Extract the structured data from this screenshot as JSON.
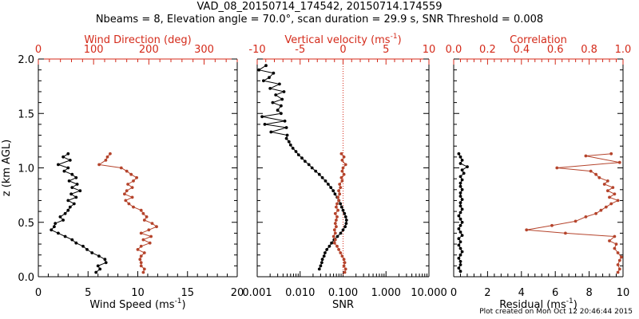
{
  "title": "VAD_08_20150714_174542, 20150714.174559",
  "subtitle": "Nbeams = 8, Elevation angle = 70.0°, scan duration = 29.9 s, SNR Threshold = 0.008",
  "footer": "Plot created on Mon Oct 12 20:46:44 2015",
  "colors": {
    "black_series": "#000000",
    "red_series": "#b5442c",
    "top_axis": "#d42a1a",
    "zero_line": "#d42a1a"
  },
  "chart_data": [
    {
      "type": "scatter",
      "panel": "left",
      "ylabel": "z (km AGL)",
      "ylim": [
        0,
        2.0
      ],
      "yticks": [
        "0.0",
        "0.5",
        "1.0",
        "1.5",
        "2.0"
      ],
      "bottom_axis": {
        "label": "Wind Speed (ms",
        "label_sup": "-1",
        "label_tail": ")",
        "range": [
          0,
          20
        ],
        "ticks": [
          "0",
          "5",
          "10",
          "15",
          "20"
        ]
      },
      "top_axis": {
        "label": "Wind Direction (deg)",
        "range": [
          0,
          360
        ],
        "ticks": [
          "0",
          "100",
          "200",
          "300"
        ]
      },
      "series": [
        {
          "axis": "bottom",
          "color": "black",
          "points": [
            [
              3.0,
              1.13
            ],
            [
              2.5,
              1.1
            ],
            [
              3.2,
              1.07
            ],
            [
              2.0,
              1.03
            ],
            [
              3.0,
              1.0
            ],
            [
              2.6,
              0.97
            ],
            [
              3.4,
              0.94
            ],
            [
              3.8,
              0.91
            ],
            [
              3.1,
              0.88
            ],
            [
              3.9,
              0.85
            ],
            [
              3.4,
              0.82
            ],
            [
              4.2,
              0.79
            ],
            [
              3.3,
              0.76
            ],
            [
              3.8,
              0.73
            ],
            [
              3.0,
              0.7
            ],
            [
              3.6,
              0.67
            ],
            [
              3.2,
              0.64
            ],
            [
              3.0,
              0.61
            ],
            [
              2.7,
              0.58
            ],
            [
              2.2,
              0.55
            ],
            [
              2.5,
              0.52
            ],
            [
              1.7,
              0.49
            ],
            [
              1.6,
              0.46
            ],
            [
              1.3,
              0.43
            ],
            [
              2.0,
              0.4
            ],
            [
              2.7,
              0.37
            ],
            [
              3.4,
              0.34
            ],
            [
              3.8,
              0.31
            ],
            [
              4.5,
              0.28
            ],
            [
              4.9,
              0.25
            ],
            [
              5.4,
              0.22
            ],
            [
              6.1,
              0.19
            ],
            [
              6.7,
              0.16
            ],
            [
              6.8,
              0.13
            ],
            [
              6.0,
              0.1
            ],
            [
              6.2,
              0.07
            ],
            [
              5.8,
              0.04
            ]
          ]
        },
        {
          "axis": "top",
          "color": "red",
          "points": [
            [
              130,
              1.13
            ],
            [
              125,
              1.1
            ],
            [
              122,
              1.07
            ],
            [
              110,
              1.03
            ],
            [
              150,
              1.0
            ],
            [
              160,
              0.97
            ],
            [
              168,
              0.94
            ],
            [
              178,
              0.91
            ],
            [
              172,
              0.88
            ],
            [
              162,
              0.85
            ],
            [
              170,
              0.82
            ],
            [
              160,
              0.79
            ],
            [
              156,
              0.76
            ],
            [
              170,
              0.73
            ],
            [
              158,
              0.7
            ],
            [
              164,
              0.67
            ],
            [
              172,
              0.64
            ],
            [
              186,
              0.61
            ],
            [
              190,
              0.58
            ],
            [
              196,
              0.55
            ],
            [
              192,
              0.52
            ],
            [
              206,
              0.49
            ],
            [
              214,
              0.46
            ],
            [
              200,
              0.43
            ],
            [
              186,
              0.4
            ],
            [
              204,
              0.37
            ],
            [
              190,
              0.34
            ],
            [
              202,
              0.31
            ],
            [
              186,
              0.28
            ],
            [
              180,
              0.25
            ],
            [
              192,
              0.22
            ],
            [
              186,
              0.19
            ],
            [
              184,
              0.16
            ],
            [
              186,
              0.13
            ],
            [
              186,
              0.1
            ],
            [
              192,
              0.07
            ],
            [
              190,
              0.04
            ]
          ]
        }
      ]
    },
    {
      "type": "scatter",
      "panel": "middle",
      "bottom_axis": {
        "label": "SNR",
        "range": [
          0.001,
          10
        ],
        "scale": "log",
        "ticks": [
          "0.001",
          "0.010",
          "0.100",
          "1.000",
          "10.000"
        ]
      },
      "top_axis": {
        "label": "Vertical velocity (ms",
        "label_sup": "-1",
        "label_tail": ")",
        "range": [
          -10,
          10
        ],
        "ticks": [
          "-10",
          "-5",
          "0",
          "5",
          "10"
        ]
      },
      "series": [
        {
          "axis": "bottom",
          "color": "black",
          "points": [
            [
              0.0016,
              1.94
            ],
            [
              0.0011,
              1.9
            ],
            [
              0.0024,
              1.87
            ],
            [
              0.0019,
              1.83
            ],
            [
              0.0014,
              1.8
            ],
            [
              0.0033,
              1.77
            ],
            [
              0.002,
              1.73
            ],
            [
              0.0042,
              1.7
            ],
            [
              0.0027,
              1.67
            ],
            [
              0.0038,
              1.63
            ],
            [
              0.0023,
              1.6
            ],
            [
              0.0036,
              1.57
            ],
            [
              0.003,
              1.53
            ],
            [
              0.0036,
              1.5
            ],
            [
              0.0013,
              1.47
            ],
            [
              0.0044,
              1.43
            ],
            [
              0.0015,
              1.4
            ],
            [
              0.0048,
              1.37
            ],
            [
              0.0021,
              1.33
            ],
            [
              0.005,
              1.3
            ],
            [
              0.0048,
              1.27
            ],
            [
              0.0055,
              1.24
            ],
            [
              0.006,
              1.21
            ],
            [
              0.0068,
              1.18
            ],
            [
              0.008,
              1.15
            ],
            [
              0.0092,
              1.12
            ],
            [
              0.011,
              1.09
            ],
            [
              0.013,
              1.06
            ],
            [
              0.016,
              1.03
            ],
            [
              0.019,
              1.0
            ],
            [
              0.023,
              0.97
            ],
            [
              0.028,
              0.94
            ],
            [
              0.033,
              0.91
            ],
            [
              0.039,
              0.88
            ],
            [
              0.045,
              0.85
            ],
            [
              0.052,
              0.82
            ],
            [
              0.059,
              0.79
            ],
            [
              0.065,
              0.76
            ],
            [
              0.073,
              0.73
            ],
            [
              0.08,
              0.7
            ],
            [
              0.087,
              0.67
            ],
            [
              0.093,
              0.64
            ],
            [
              0.1,
              0.61
            ],
            [
              0.108,
              0.58
            ],
            [
              0.115,
              0.55
            ],
            [
              0.12,
              0.52
            ],
            [
              0.118,
              0.49
            ],
            [
              0.112,
              0.46
            ],
            [
              0.1,
              0.43
            ],
            [
              0.088,
              0.4
            ],
            [
              0.074,
              0.37
            ],
            [
              0.062,
              0.34
            ],
            [
              0.054,
              0.31
            ],
            [
              0.048,
              0.28
            ],
            [
              0.042,
              0.25
            ],
            [
              0.038,
              0.22
            ],
            [
              0.036,
              0.19
            ],
            [
              0.033,
              0.16
            ],
            [
              0.032,
              0.13
            ],
            [
              0.03,
              0.1
            ],
            [
              0.028,
              0.07
            ]
          ]
        },
        {
          "axis": "top",
          "color": "red",
          "points": [
            [
              -0.2,
              1.13
            ],
            [
              0.1,
              1.1
            ],
            [
              -0.1,
              1.07
            ],
            [
              0.3,
              1.03
            ],
            [
              0.0,
              1.0
            ],
            [
              -0.1,
              0.97
            ],
            [
              0.1,
              0.94
            ],
            [
              -0.2,
              0.91
            ],
            [
              -0.1,
              0.88
            ],
            [
              -0.4,
              0.85
            ],
            [
              -0.3,
              0.82
            ],
            [
              -0.5,
              0.79
            ],
            [
              -0.4,
              0.76
            ],
            [
              -0.6,
              0.73
            ],
            [
              -0.5,
              0.7
            ],
            [
              -0.7,
              0.67
            ],
            [
              -0.8,
              0.64
            ],
            [
              -0.6,
              0.61
            ],
            [
              -0.9,
              0.58
            ],
            [
              -0.7,
              0.55
            ],
            [
              -0.8,
              0.52
            ],
            [
              -0.9,
              0.49
            ],
            [
              -0.8,
              0.46
            ],
            [
              -1.0,
              0.43
            ],
            [
              -0.9,
              0.4
            ],
            [
              -1.1,
              0.37
            ],
            [
              -0.9,
              0.34
            ],
            [
              -1.0,
              0.31
            ],
            [
              -0.7,
              0.28
            ],
            [
              -0.5,
              0.25
            ],
            [
              -0.3,
              0.22
            ],
            [
              -0.1,
              0.19
            ],
            [
              0.1,
              0.16
            ],
            [
              0.2,
              0.13
            ],
            [
              0.1,
              0.1
            ],
            [
              0.3,
              0.07
            ],
            [
              0.2,
              0.04
            ]
          ]
        }
      ]
    },
    {
      "type": "scatter",
      "panel": "right",
      "bottom_axis": {
        "label": "Residual (ms",
        "label_sup": "-1",
        "label_tail": ")",
        "range": [
          0,
          10
        ],
        "ticks": [
          "0",
          "2",
          "4",
          "6",
          "8",
          "10"
        ]
      },
      "top_axis": {
        "label": "Correlation",
        "range": [
          0,
          1.0
        ],
        "ticks": [
          "0.0",
          "0.2",
          "0.4",
          "0.6",
          "0.8",
          "1.0"
        ]
      },
      "series": [
        {
          "axis": "bottom",
          "color": "black",
          "points": [
            [
              0.3,
              1.13
            ],
            [
              0.4,
              1.1
            ],
            [
              0.5,
              1.07
            ],
            [
              0.4,
              1.04
            ],
            [
              0.8,
              1.01
            ],
            [
              0.5,
              0.98
            ],
            [
              0.6,
              0.95
            ],
            [
              0.4,
              0.92
            ],
            [
              0.5,
              0.89
            ],
            [
              0.4,
              0.86
            ],
            [
              0.4,
              0.83
            ],
            [
              0.5,
              0.8
            ],
            [
              0.4,
              0.77
            ],
            [
              0.4,
              0.74
            ],
            [
              0.5,
              0.71
            ],
            [
              0.4,
              0.68
            ],
            [
              0.4,
              0.65
            ],
            [
              0.5,
              0.62
            ],
            [
              0.4,
              0.59
            ],
            [
              0.3,
              0.56
            ],
            [
              0.4,
              0.53
            ],
            [
              0.5,
              0.5
            ],
            [
              0.4,
              0.47
            ],
            [
              0.3,
              0.44
            ],
            [
              0.4,
              0.41
            ],
            [
              0.5,
              0.38
            ],
            [
              0.3,
              0.35
            ],
            [
              0.4,
              0.32
            ],
            [
              0.3,
              0.29
            ],
            [
              0.4,
              0.26
            ],
            [
              0.5,
              0.23
            ],
            [
              0.4,
              0.2
            ],
            [
              0.3,
              0.17
            ],
            [
              0.4,
              0.14
            ],
            [
              0.4,
              0.11
            ],
            [
              0.3,
              0.08
            ],
            [
              0.4,
              0.05
            ]
          ]
        },
        {
          "axis": "top",
          "color": "red",
          "points": [
            [
              0.93,
              1.13
            ],
            [
              0.78,
              1.11
            ],
            [
              0.98,
              1.05
            ],
            [
              0.61,
              1.0
            ],
            [
              0.81,
              0.97
            ],
            [
              0.84,
              0.94
            ],
            [
              0.86,
              0.91
            ],
            [
              0.91,
              0.88
            ],
            [
              0.89,
              0.85
            ],
            [
              0.94,
              0.82
            ],
            [
              0.91,
              0.79
            ],
            [
              0.95,
              0.76
            ],
            [
              0.92,
              0.73
            ],
            [
              0.97,
              0.7
            ],
            [
              0.93,
              0.67
            ],
            [
              0.9,
              0.64
            ],
            [
              0.87,
              0.61
            ],
            [
              0.84,
              0.58
            ],
            [
              0.78,
              0.55
            ],
            [
              0.72,
              0.51
            ],
            [
              0.58,
              0.47
            ],
            [
              0.43,
              0.43
            ],
            [
              0.66,
              0.4
            ],
            [
              0.95,
              0.37
            ],
            [
              0.92,
              0.33
            ],
            [
              0.96,
              0.3
            ],
            [
              0.95,
              0.26
            ],
            [
              0.97,
              0.22
            ],
            [
              0.99,
              0.18
            ],
            [
              0.98,
              0.15
            ],
            [
              0.97,
              0.11
            ],
            [
              0.98,
              0.07
            ],
            [
              0.97,
              0.04
            ]
          ]
        }
      ]
    }
  ]
}
